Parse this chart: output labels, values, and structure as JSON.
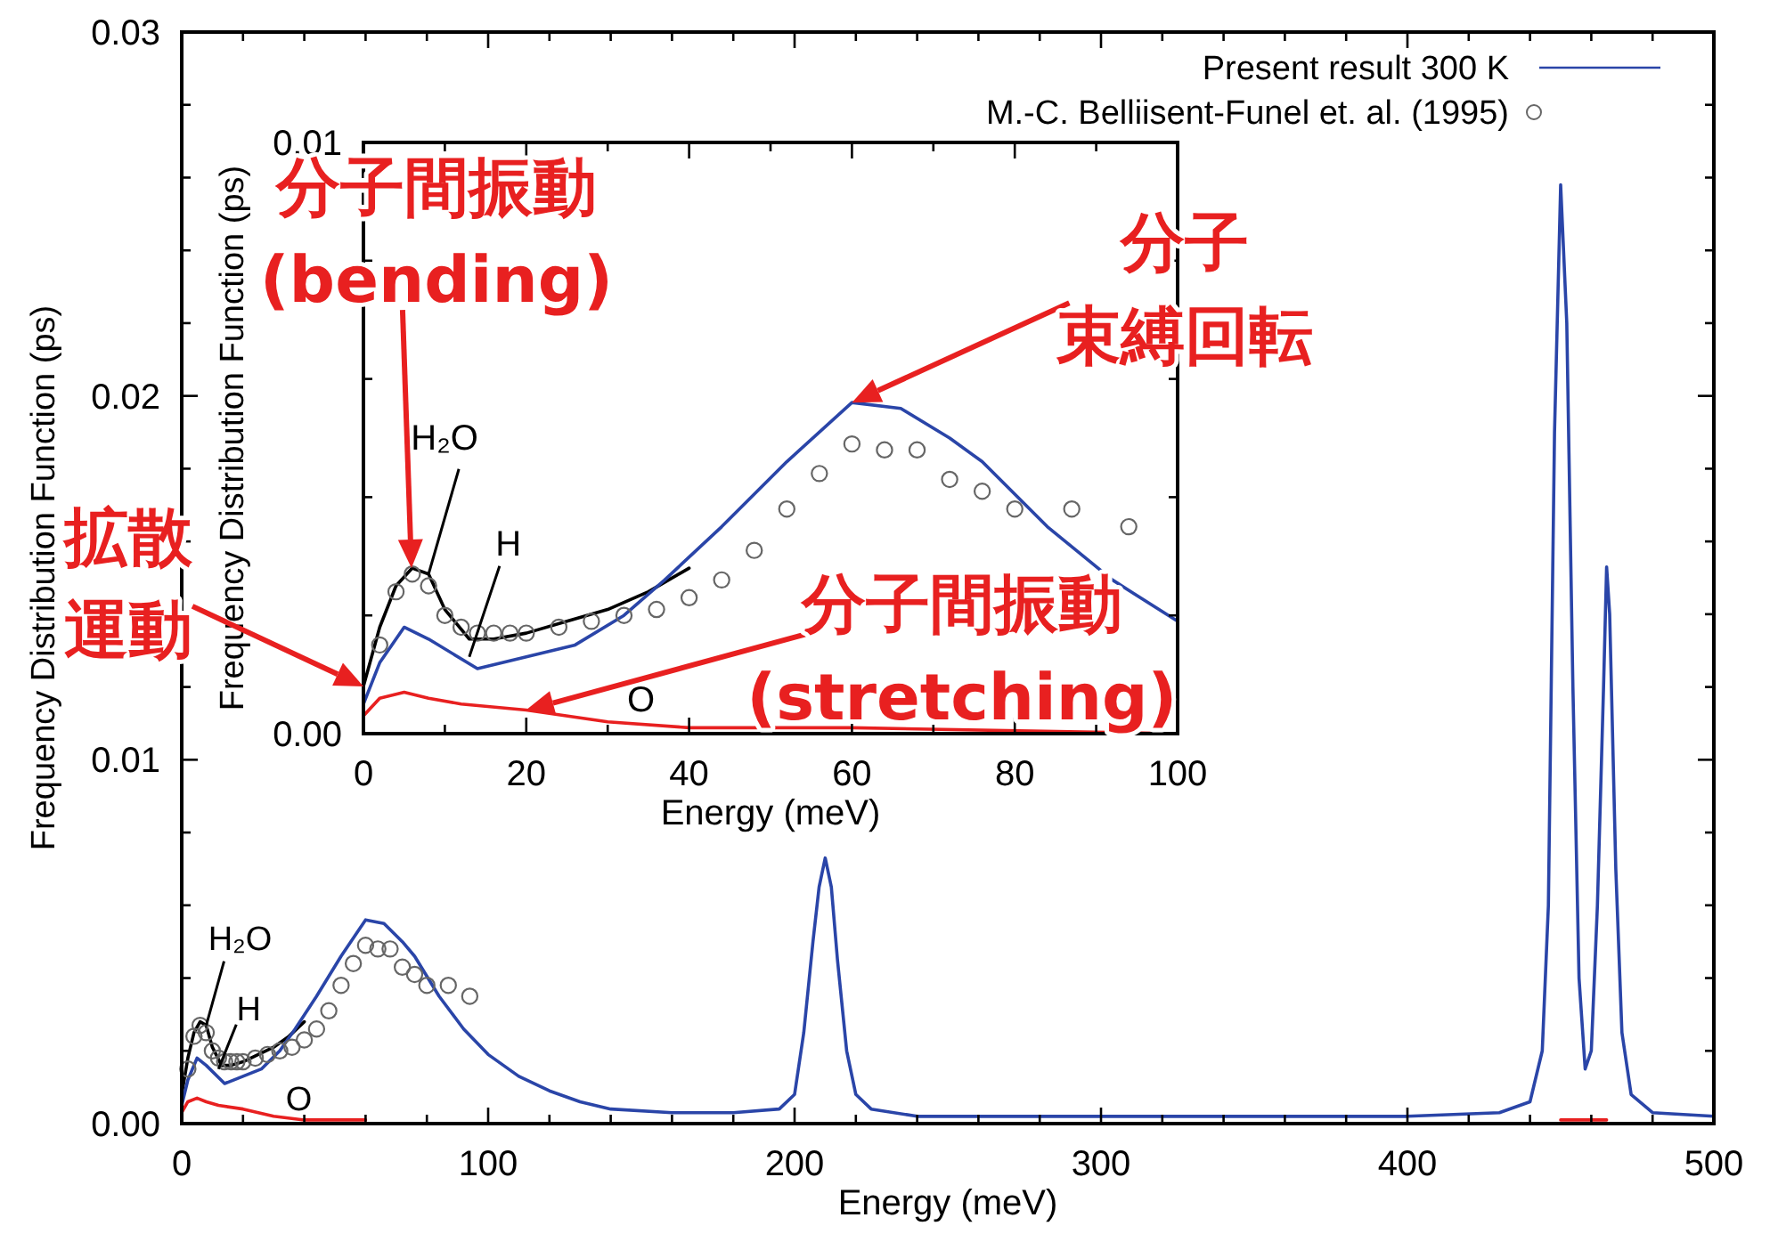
{
  "chart_data": [
    {
      "type": "line",
      "xlabel": "Energy (meV)",
      "ylabel": "Frequency Distribution Function (ps)",
      "xlim": [
        0,
        500
      ],
      "ylim": [
        0,
        0.03
      ],
      "xticks": [
        0,
        {
          "value": 20,
          "label": null
        },
        {
          "value": 40,
          "label": null
        },
        {
          "value": 60,
          "label": null
        },
        {
          "value": 80,
          "label": null
        },
        100,
        {
          "value": 120,
          "label": null
        },
        {
          "value": 140,
          "label": null
        },
        {
          "value": 160,
          "label": null
        },
        {
          "value": 180,
          "label": null
        },
        200,
        {
          "value": 220,
          "label": null
        },
        {
          "value": 240,
          "label": null
        },
        {
          "value": 260,
          "label": null
        },
        {
          "value": 280,
          "label": null
        },
        300,
        {
          "value": 320,
          "label": null
        },
        {
          "value": 340,
          "label": null
        },
        {
          "value": 360,
          "label": null
        },
        {
          "value": 380,
          "label": null
        },
        400,
        {
          "value": 420,
          "label": null
        },
        {
          "value": 440,
          "label": null
        },
        {
          "value": 460,
          "label": null
        },
        {
          "value": 480,
          "label": null
        },
        500
      ],
      "yticks": [
        {
          "value": 0,
          "label": "0.00"
        },
        {
          "value": 0.002,
          "label": null
        },
        {
          "value": 0.004,
          "label": null
        },
        {
          "value": 0.006,
          "label": null
        },
        {
          "value": 0.008,
          "label": null
        },
        {
          "value": 0.01,
          "label": "0.01"
        },
        {
          "value": 0.012,
          "label": null
        },
        {
          "value": 0.014,
          "label": null
        },
        {
          "value": 0.016,
          "label": null
        },
        {
          "value": 0.018,
          "label": null
        },
        {
          "value": 0.02,
          "label": "0.02"
        },
        {
          "value": 0.022,
          "label": null
        },
        {
          "value": 0.024,
          "label": null
        },
        {
          "value": 0.026,
          "label": null
        },
        {
          "value": 0.028,
          "label": null
        },
        {
          "value": 0.03,
          "label": "0.03"
        }
      ],
      "legend": "top right",
      "marker": "none",
      "line_style": "solid",
      "series": [
        {
          "color": "#000000",
          "x": [
            0,
            2,
            4,
            6,
            8,
            10,
            13,
            16,
            20,
            25,
            30,
            35,
            40
          ],
          "values": [
            0.0008,
            0.0018,
            0.0025,
            0.0028,
            0.0027,
            0.0021,
            0.0016,
            0.0016,
            0.0017,
            0.0019,
            0.0021,
            0.0024,
            0.0028
          ]
        },
        {
          "name": "Present result 300 K",
          "color": "#2a45a8",
          "x": [
            0,
            2,
            5,
            8,
            14,
            20,
            26,
            32,
            37,
            44,
            52,
            60,
            66,
            72,
            76,
            84,
            92,
            100,
            110,
            120,
            130,
            140,
            160,
            180,
            195,
            200,
            203,
            206,
            208,
            210,
            212,
            214,
            217,
            220,
            225,
            240,
            300,
            350,
            400,
            430,
            440,
            444,
            446,
            448,
            450,
            452,
            454,
            456,
            458,
            460,
            462,
            464,
            465,
            466,
            468,
            470,
            473,
            480,
            500
          ],
          "values": [
            0.0005,
            0.0012,
            0.0018,
            0.0016,
            0.0011,
            0.0013,
            0.0015,
            0.002,
            0.0026,
            0.0035,
            0.0046,
            0.0056,
            0.0055,
            0.005,
            0.0046,
            0.0035,
            0.0026,
            0.0019,
            0.0013,
            0.0009,
            0.0006,
            0.0004,
            0.0003,
            0.0003,
            0.0004,
            0.0008,
            0.0025,
            0.005,
            0.0065,
            0.0073,
            0.0065,
            0.0045,
            0.002,
            0.0008,
            0.0004,
            0.0002,
            0.0002,
            0.0002,
            0.0002,
            0.0003,
            0.0006,
            0.002,
            0.006,
            0.019,
            0.0258,
            0.022,
            0.012,
            0.004,
            0.0015,
            0.002,
            0.006,
            0.012,
            0.0153,
            0.014,
            0.007,
            0.0025,
            0.0008,
            0.0003,
            0.0002
          ]
        },
        {
          "color": "#e82020",
          "x": [
            0,
            2,
            5,
            8,
            12,
            20,
            30,
            40,
            60,
            100,
            200,
            300,
            400,
            440,
            450,
            465
          ],
          "values": [
            0.0003,
            0.0006,
            0.0007,
            0.0006,
            0.0005,
            0.0004,
            0.0002,
            0.0001,
            0.0001,
            null,
            null,
            null,
            null,
            null,
            0.0001,
            0.0001
          ]
        },
        {
          "name": "M.-C. Belliisent-Funel et. al. (1995)",
          "type": "scatter",
          "marker": "circle",
          "color": "#666666",
          "x": [
            2,
            4,
            6,
            8,
            10,
            12,
            14,
            16,
            18,
            20,
            24,
            28,
            32,
            36,
            40,
            44,
            48,
            52,
            56,
            60,
            64,
            68,
            72,
            76,
            80,
            87,
            94
          ],
          "values": [
            0.0015,
            0.0024,
            0.0027,
            0.0025,
            0.002,
            0.0018,
            0.0017,
            0.0017,
            0.0017,
            0.0017,
            0.0018,
            0.0019,
            0.002,
            0.0021,
            0.0023,
            0.0026,
            0.0031,
            0.0038,
            0.0044,
            0.0049,
            0.0048,
            0.0048,
            0.0043,
            0.0041,
            0.0038,
            0.0038,
            0.0035
          ]
        }
      ],
      "annotations": [
        {
          "text": "H₂O",
          "x": 8,
          "y": 0.0027
        },
        {
          "text": "H",
          "x": 12,
          "y": 0.0015
        },
        {
          "text": "O",
          "x": 40,
          "y": 0.0001
        }
      ]
    },
    {
      "type": "line",
      "xlabel": "Energy (meV)",
      "ylabel": "Frequency Distribution Function (ps)",
      "xlim": [
        0,
        100
      ],
      "ylim": [
        0,
        0.01
      ],
      "xticks": [
        0,
        {
          "value": 10,
          "label": null
        },
        20,
        {
          "value": 30,
          "label": null
        },
        40,
        {
          "value": 50,
          "label": null
        },
        60,
        {
          "value": 70,
          "label": null
        },
        80,
        {
          "value": 90,
          "label": null
        },
        100
      ],
      "yticks": [
        {
          "value": 0,
          "label": "0.00"
        },
        {
          "value": 0.002,
          "label": null
        },
        {
          "value": 0.004,
          "label": null
        },
        {
          "value": 0.006,
          "label": null
        },
        {
          "value": 0.008,
          "label": null
        },
        {
          "value": 0.01,
          "label": "0.01"
        }
      ],
      "marker": "none",
      "line_style": "solid",
      "series": [
        {
          "color": "#000000",
          "x": [
            0,
            2,
            4,
            6,
            8,
            10,
            13,
            16,
            20,
            25,
            30,
            35,
            40
          ],
          "values": [
            0.0008,
            0.0018,
            0.0025,
            0.0028,
            0.0027,
            0.0021,
            0.0016,
            0.0016,
            0.0017,
            0.0019,
            0.0021,
            0.0024,
            0.0028
          ]
        },
        {
          "color": "#2a45a8",
          "x": [
            0,
            2,
            5,
            8,
            14,
            20,
            26,
            32,
            37,
            44,
            52,
            60,
            66,
            72,
            76,
            84,
            92,
            100
          ],
          "values": [
            0.0005,
            0.0012,
            0.0018,
            0.0016,
            0.0011,
            0.0013,
            0.0015,
            0.002,
            0.0026,
            0.0035,
            0.0046,
            0.0056,
            0.0055,
            0.005,
            0.0046,
            0.0035,
            0.0026,
            0.0019
          ]
        },
        {
          "color": "#e82020",
          "x": [
            0,
            2,
            5,
            8,
            12,
            20,
            30,
            40,
            60,
            100
          ],
          "values": [
            0.0003,
            0.0006,
            0.0007,
            0.0006,
            0.0005,
            0.0004,
            0.0002,
            0.0001,
            0.0001,
            0
          ]
        },
        {
          "type": "scatter",
          "marker": "circle",
          "color": "#666666",
          "x": [
            2,
            4,
            6,
            8,
            10,
            12,
            14,
            16,
            18,
            20,
            24,
            28,
            32,
            36,
            40,
            44,
            48,
            52,
            56,
            60,
            64,
            68,
            72,
            76,
            80,
            87,
            94
          ],
          "values": [
            0.0015,
            0.0024,
            0.0027,
            0.0025,
            0.002,
            0.0018,
            0.0017,
            0.0017,
            0.0017,
            0.0017,
            0.0018,
            0.0019,
            0.002,
            0.0021,
            0.0023,
            0.0026,
            0.0031,
            0.0038,
            0.0044,
            0.0049,
            0.0048,
            0.0048,
            0.0043,
            0.0041,
            0.0038,
            0.0038,
            0.0035
          ]
        }
      ],
      "annotations": [
        {
          "text": "H₂O",
          "x": 8,
          "y": 0.0027
        },
        {
          "text": "H",
          "x": 13,
          "y": 0.0013
        },
        {
          "text": "O",
          "x": 33,
          "y": 0.0002
        },
        "分子間振動\n(bending)",
        "分子束縛回転",
        {
          "text": "拡散運動",
          "x": 0,
          "y": 0.0008
        },
        "分子間振動\n(stretching)"
      ]
    }
  ]
}
